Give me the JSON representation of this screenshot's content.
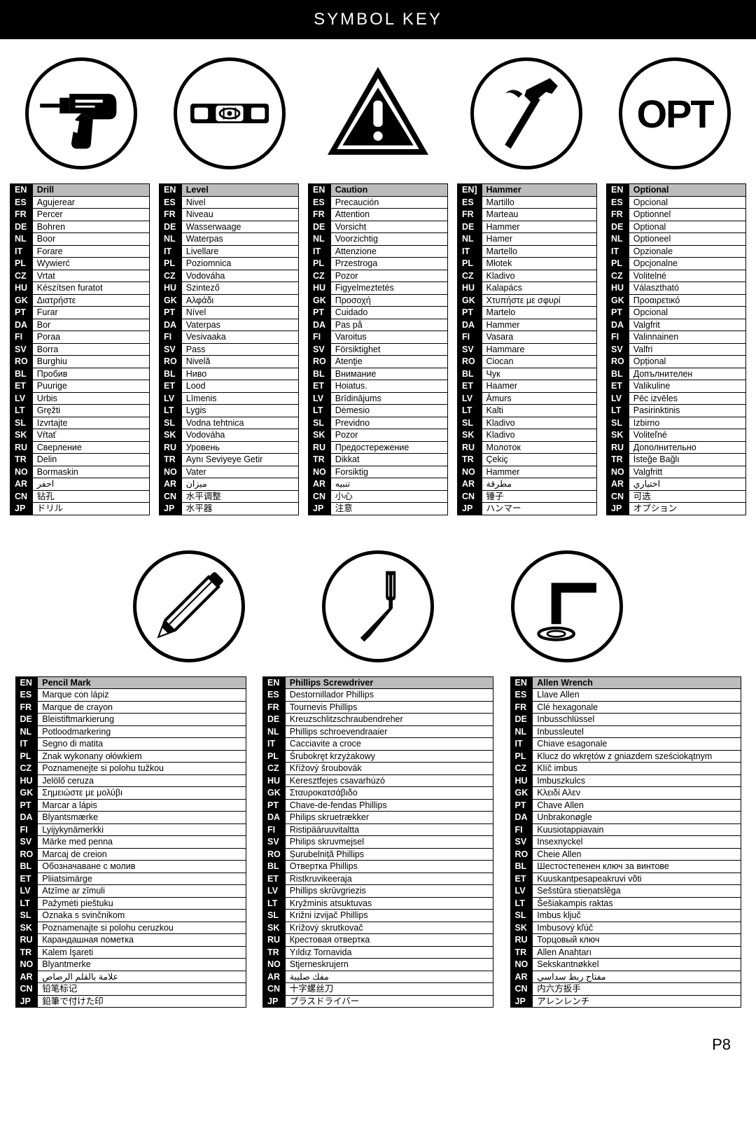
{
  "title": "SYMBOL KEY",
  "page_number": "P8",
  "langs": [
    "EN",
    "ES",
    "FR",
    "DE",
    "NL",
    "IT",
    "PL",
    "CZ",
    "HU",
    "GK",
    "PT",
    "DA",
    "FI",
    "SV",
    "RO",
    "BL",
    "ET",
    "LV",
    "LT",
    "SL",
    "SK",
    "RU",
    "TR",
    "NO",
    "AR",
    "CN",
    "JP"
  ],
  "top_tables": [
    {
      "header_code": "EN",
      "header_term": "Drill",
      "rows": [
        [
          "ES",
          "Agujerear"
        ],
        [
          "FR",
          "Percer"
        ],
        [
          "DE",
          "Bohren"
        ],
        [
          "NL",
          "Boor"
        ],
        [
          "IT",
          "Forare"
        ],
        [
          "PL",
          "Wywierć"
        ],
        [
          "CZ",
          "Vrtat"
        ],
        [
          "HU",
          "Készítsen furatot"
        ],
        [
          "GK",
          "Διατρήστε"
        ],
        [
          "PT",
          "Furar"
        ],
        [
          "DA",
          "Bor"
        ],
        [
          "FI",
          "Poraa"
        ],
        [
          "SV",
          "Borra"
        ],
        [
          "RO",
          "Burghiu"
        ],
        [
          "BL",
          "Пробив"
        ],
        [
          "ET",
          "Puurige"
        ],
        [
          "LV",
          "Urbis"
        ],
        [
          "LT",
          "Gręžti"
        ],
        [
          "SL",
          "Izvrtajte"
        ],
        [
          "SK",
          "Vŕtať"
        ],
        [
          "RU",
          "Сверление"
        ],
        [
          "TR",
          "Delin"
        ],
        [
          "NO",
          "Bormaskin"
        ],
        [
          "AR",
          "احفر"
        ],
        [
          "CN",
          "钻孔"
        ],
        [
          "JP",
          "ドリル"
        ]
      ]
    },
    {
      "header_code": "EN",
      "header_term": "Level",
      "rows": [
        [
          "ES",
          "Nivel"
        ],
        [
          "FR",
          "Niveau"
        ],
        [
          "DE",
          "Wasserwaage"
        ],
        [
          "NL",
          "Waterpas"
        ],
        [
          "IT",
          "Livellare"
        ],
        [
          "PL",
          "Poziomnica"
        ],
        [
          "CZ",
          "Vodováha"
        ],
        [
          "HU",
          "Szintező"
        ],
        [
          "GK",
          "Αλφάδι"
        ],
        [
          "PT",
          "Nível"
        ],
        [
          "DA",
          "Vaterpas"
        ],
        [
          "FI",
          "Vesivaaka"
        ],
        [
          "SV",
          "Pass"
        ],
        [
          "RO",
          "Nivelă"
        ],
        [
          "BL",
          "Ниво"
        ],
        [
          "ET",
          "Lood"
        ],
        [
          "LV",
          "Līmenis"
        ],
        [
          "LT",
          "Lygis"
        ],
        [
          "SL",
          "Vodna tehtnica"
        ],
        [
          "SK",
          "Vodováha"
        ],
        [
          "RU",
          "Уровень"
        ],
        [
          "TR",
          "Aynı Seviyeye Getir"
        ],
        [
          "NO",
          "Vater"
        ],
        [
          "AR",
          "ميزان"
        ],
        [
          "CN",
          "水平调整"
        ],
        [
          "JP",
          "水平器"
        ]
      ]
    },
    {
      "header_code": "EN",
      "header_term": "Caution",
      "rows": [
        [
          "ES",
          "Precaución"
        ],
        [
          "FR",
          "Attention"
        ],
        [
          "DE",
          "Vorsicht"
        ],
        [
          "NL",
          "Voorzichtig"
        ],
        [
          "IT",
          "Attenzione"
        ],
        [
          "PL",
          "Przestroga"
        ],
        [
          "CZ",
          "Pozor"
        ],
        [
          "HU",
          "Figyelmeztetés"
        ],
        [
          "GK",
          "Προσοχή"
        ],
        [
          "PT",
          "Cuidado"
        ],
        [
          "DA",
          "Pas på"
        ],
        [
          "FI",
          "Varoitus"
        ],
        [
          "SV",
          "Försiktighet"
        ],
        [
          "RO",
          "Atenţie"
        ],
        [
          "BL",
          "Внимание"
        ],
        [
          "ET",
          "Hoiatus."
        ],
        [
          "LV",
          "Brīdinājums"
        ],
        [
          "LT",
          "Dėmesio"
        ],
        [
          "SL",
          "Previdno"
        ],
        [
          "SK",
          "Pozor"
        ],
        [
          "RU",
          "Предостережение"
        ],
        [
          "TR",
          "Dikkat"
        ],
        [
          "NO",
          "Forsiktig"
        ],
        [
          "AR",
          "تنبيه"
        ],
        [
          "CN",
          "小心"
        ],
        [
          "JP",
          "注意"
        ]
      ]
    },
    {
      "header_code": "EN]",
      "header_term": "Hammer",
      "rows": [
        [
          "ES",
          "Martillo"
        ],
        [
          "FR",
          "Marteau"
        ],
        [
          "DE",
          "Hammer"
        ],
        [
          "NL",
          "Hamer"
        ],
        [
          "IT",
          "Martello"
        ],
        [
          "PL",
          "Młotek"
        ],
        [
          "CZ",
          "Kladivo"
        ],
        [
          "HU",
          "Kalapács"
        ],
        [
          "GK",
          "Χτυπήστε με σφυρί"
        ],
        [
          "PT",
          "Martelo"
        ],
        [
          "DA",
          "Hammer"
        ],
        [
          "FI",
          "Vasara"
        ],
        [
          "SV",
          "Hammare"
        ],
        [
          "RO",
          "Ciocan"
        ],
        [
          "BL",
          "Чук"
        ],
        [
          "ET",
          "Haamer"
        ],
        [
          "LV",
          "Āmurs"
        ],
        [
          "LT",
          "Kalti"
        ],
        [
          "SL",
          "Kladivo"
        ],
        [
          "SK",
          "Kladivo"
        ],
        [
          "RU",
          "Молоток"
        ],
        [
          "TR",
          "Çekiç"
        ],
        [
          "NO",
          "Hammer"
        ],
        [
          "AR",
          "مطرقة"
        ],
        [
          "CN",
          "锤子"
        ],
        [
          "JP",
          "ハンマー"
        ]
      ]
    },
    {
      "header_code": "EN",
      "header_term": "Optional",
      "rows": [
        [
          "ES",
          "Opcional"
        ],
        [
          "FR",
          "Optionnel"
        ],
        [
          "DE",
          "Optional"
        ],
        [
          "NL",
          "Optioneel"
        ],
        [
          "IT",
          "Opzionale"
        ],
        [
          "PL",
          "Opcjonalne"
        ],
        [
          "CZ",
          "Volitelné"
        ],
        [
          "HU",
          "Választható"
        ],
        [
          "GK",
          "Προαιρετικό"
        ],
        [
          "PT",
          "Opcional"
        ],
        [
          "DA",
          "Valgfrit"
        ],
        [
          "FI",
          "Valinnainen"
        ],
        [
          "SV",
          "Valfri"
        ],
        [
          "RO",
          "Opțional"
        ],
        [
          "BL",
          "Допълнителен"
        ],
        [
          "ET",
          "Valikuline"
        ],
        [
          "LV",
          "Pēc izvēles"
        ],
        [
          "LT",
          "Pasirinktinis"
        ],
        [
          "SL",
          "Izbirno"
        ],
        [
          "SK",
          "Voliteľné"
        ],
        [
          "RU",
          "Дополнительно"
        ],
        [
          "TR",
          "İsteğe Bağlı"
        ],
        [
          "NO",
          "Valgfritt"
        ],
        [
          "AR",
          "اختياري"
        ],
        [
          "CN",
          "可选"
        ],
        [
          "JP",
          "オプション"
        ]
      ]
    }
  ],
  "bottom_tables": [
    {
      "header_code": "EN",
      "header_term": "Pencil Mark",
      "rows": [
        [
          "ES",
          "Marque con lápiz"
        ],
        [
          "FR",
          "Marque de crayon"
        ],
        [
          "DE",
          "Bleistiftmarkierung"
        ],
        [
          "NL",
          "Potloodmarkering"
        ],
        [
          "IT",
          "Segno di matita"
        ],
        [
          "PL",
          "Znak wykonany ołówkiem"
        ],
        [
          "CZ",
          "Poznamenejte si polohu tužkou"
        ],
        [
          "HU",
          "Jelölő ceruza"
        ],
        [
          "GK",
          "Σημειώστε με μολύβι"
        ],
        [
          "PT",
          "Marcar a lápis"
        ],
        [
          "DA",
          "Blyantsmærke"
        ],
        [
          "FI",
          "Lyijykynämerkki"
        ],
        [
          "SV",
          "Märke med penna"
        ],
        [
          "RO",
          "Marcaj de creion"
        ],
        [
          "BL",
          "Обозначаване с молив"
        ],
        [
          "ET",
          "Pliiatsimärge"
        ],
        [
          "LV",
          "Atzīme ar zīmuli"
        ],
        [
          "LT",
          "Pažymėti pieštuku"
        ],
        [
          "SL",
          "Oznaka s svinčnikom"
        ],
        [
          "SK",
          "Poznamenajte si polohu ceruzkou"
        ],
        [
          "RU",
          "Карандашная пометка"
        ],
        [
          "TR",
          "Kalem İşareti"
        ],
        [
          "NO",
          "Blyantmerke"
        ],
        [
          "AR",
          "علامة بالقلم الرصاص"
        ],
        [
          "CN",
          "铅笔标记"
        ],
        [
          "JP",
          "鉛筆で付けた印"
        ]
      ]
    },
    {
      "header_code": "EN",
      "header_term": "Phillips Screwdriver",
      "rows": [
        [
          "ES",
          "Destornillador Phillips"
        ],
        [
          "FR",
          "Tournevis Phillips"
        ],
        [
          "DE",
          "Kreuzschlitzschraubendreher"
        ],
        [
          "NL",
          "Phillips schroevendraaier"
        ],
        [
          "IT",
          "Cacciavite a croce"
        ],
        [
          "PL",
          "Śrubokręt krzyżakowy"
        ],
        [
          "CZ",
          "Křížový šroubovák"
        ],
        [
          "HU",
          "Keresztfejes csavarhúzó"
        ],
        [
          "GK",
          "Σταυροκατσάβιδο"
        ],
        [
          "PT",
          "Chave-de-fendas Phillips"
        ],
        [
          "DA",
          "Philips skruetrækker"
        ],
        [
          "FI",
          "Ristipääruuvitaltta"
        ],
        [
          "SV",
          "Philips skruvmejsel"
        ],
        [
          "RO",
          "Șurubelniță Phillips"
        ],
        [
          "BL",
          "Отвертка Phillips"
        ],
        [
          "ET",
          "Ristkruvikeeraja"
        ],
        [
          "LV",
          "Phillips skrūvgriezis"
        ],
        [
          "LT",
          "Kryžminis atsuktuvas"
        ],
        [
          "SL",
          "Križni izvijač Phillips"
        ],
        [
          "SK",
          "Krížový skrutkovač"
        ],
        [
          "RU",
          "Крестовая отвертка"
        ],
        [
          "TR",
          "Yıldız Tornavida"
        ],
        [
          "NO",
          "Stjerneskrujern"
        ],
        [
          "AR",
          "مفك صليبة"
        ],
        [
          "CN",
          "十字螺丝刀"
        ],
        [
          "JP",
          "プラスドライバー"
        ]
      ]
    },
    {
      "header_code": "EN",
      "header_term": "Allen Wrench",
      "rows": [
        [
          "ES",
          "Llave Allen"
        ],
        [
          "FR",
          "Clé hexagonale"
        ],
        [
          "DE",
          "Inbusschlüssel"
        ],
        [
          "NL",
          "Inbussleutel"
        ],
        [
          "IT",
          "Chiave esagonale"
        ],
        [
          "PL",
          "Klucz do wkrętów z gniazdem sześciokątnym"
        ],
        [
          "CZ",
          "Klíč imbus"
        ],
        [
          "HU",
          "Imbuszkulcs"
        ],
        [
          "GK",
          "Κλειδί Αλεν"
        ],
        [
          "PT",
          "Chave Allen"
        ],
        [
          "DA",
          "Unbrakonøgle"
        ],
        [
          "FI",
          "Kuusiotappiavain"
        ],
        [
          "SV",
          "Insexnyckel"
        ],
        [
          "RO",
          "Cheie Allen"
        ],
        [
          "BL",
          "Шестостепенен ключ за винтове"
        ],
        [
          "ET",
          "Kuuskantpesapeakruvi võti"
        ],
        [
          "LV",
          "Sešstūra stieņatslēga"
        ],
        [
          "LT",
          "Šešiakampis raktas"
        ],
        [
          "SL",
          "Imbus ključ"
        ],
        [
          "SK",
          "Imbusový kľúč"
        ],
        [
          "RU",
          "Торцовый ключ"
        ],
        [
          "TR",
          "Allen Anahtarı"
        ],
        [
          "NO",
          "Sekskantnøkkel"
        ],
        [
          "AR",
          "مفتاح ربط سداسي"
        ],
        [
          "CN",
          "内六方扳手"
        ],
        [
          "JP",
          "アレンレンチ"
        ]
      ]
    }
  ],
  "icons": {
    "opt_text": "OPT"
  },
  "colors": {
    "header_bg": "#bcbcbc",
    "code_bg": "#000000",
    "code_fg": "#ffffff",
    "border": "#000000"
  }
}
